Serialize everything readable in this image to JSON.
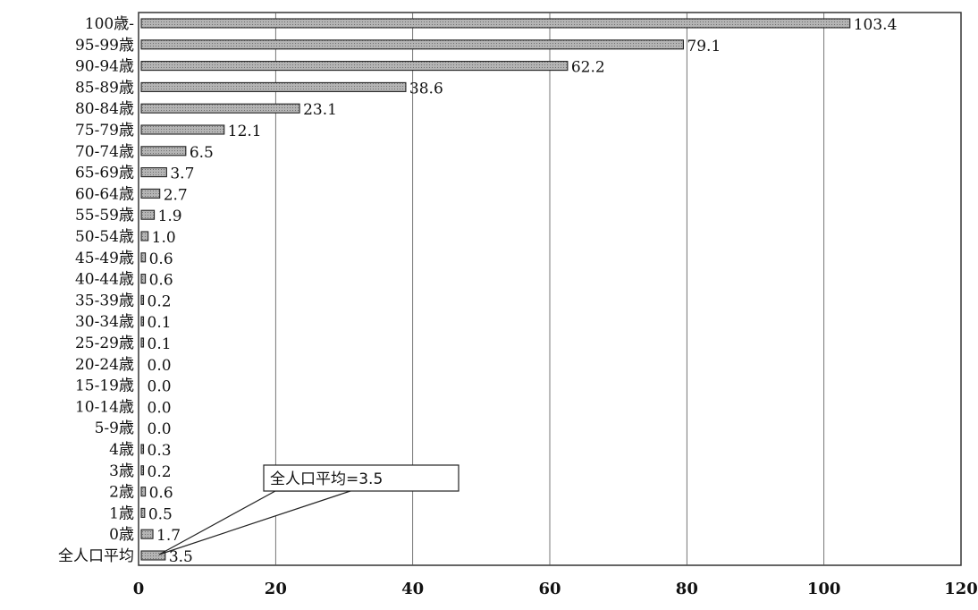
{
  "chart_data": {
    "type": "bar",
    "orientation": "horizontal",
    "categories": [
      "100歳-",
      "95-99歳",
      "90-94歳",
      "85-89歳",
      "80-84歳",
      "75-79歳",
      "70-74歳",
      "65-69歳",
      "60-64歳",
      "55-59歳",
      "50-54歳",
      "45-49歳",
      "40-44歳",
      "35-39歳",
      "30-34歳",
      "25-29歳",
      "20-24歳",
      "15-19歳",
      "10-14歳",
      "5-9歳",
      "4歳",
      "3歳",
      "2歳",
      "1歳",
      "0歳",
      "全人口平均"
    ],
    "values": [
      103.4,
      79.1,
      62.2,
      38.6,
      23.1,
      12.1,
      6.5,
      3.7,
      2.7,
      1.9,
      1.0,
      0.6,
      0.6,
      0.2,
      0.1,
      0.1,
      0.0,
      0.0,
      0.0,
      0.0,
      0.3,
      0.2,
      0.6,
      0.5,
      1.7,
      3.5
    ],
    "value_labels": [
      "103.4",
      "79.1",
      "62.2",
      "38.6",
      "23.1",
      "12.1",
      "6.5",
      "3.7",
      "2.7",
      "1.9",
      "1.0",
      "0.6",
      "0.6",
      "0.2",
      "0.1",
      "0.1",
      "0.0",
      "0.0",
      "0.0",
      "0.0",
      "0.3",
      "0.2",
      "0.6",
      "0.5",
      "1.7",
      "3.5"
    ],
    "xlim": [
      0,
      120
    ],
    "xticks": [
      0,
      20,
      40,
      60,
      80,
      100,
      120
    ],
    "title": "",
    "xlabel": "",
    "ylabel": "",
    "grid": "vertical",
    "annotation": {
      "text": "全人口平均=3.5",
      "points_to": "全人口平均"
    },
    "colors": {
      "bar_fill": "#a8a8a8",
      "bar_stroke": "#222222",
      "grid": "#555555",
      "frame": "#333333"
    }
  }
}
